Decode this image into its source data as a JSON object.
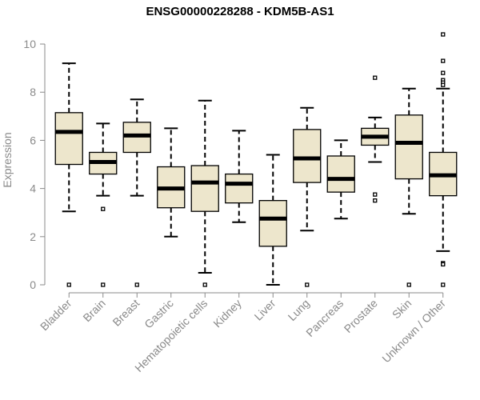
{
  "chart_data": {
    "type": "boxplot",
    "title": "ENSG00000228288 - KDM5B-AS1",
    "xlabel": "",
    "ylabel": "Expression",
    "ylim": [
      0,
      10.5
    ],
    "yticks": [
      0,
      2,
      4,
      6,
      8,
      10
    ],
    "grid": false,
    "box_color": "#ede6cc",
    "categories": [
      "Bladder",
      "Brain",
      "Breast",
      "Gastric",
      "Hematopoietic cells",
      "Kidney",
      "Liver",
      "Lung",
      "Pancreas",
      "Prostate",
      "Skin",
      "Unknown / Other"
    ],
    "boxes": [
      {
        "category": "Bladder",
        "whisker_low": 3.05,
        "q1": 5.0,
        "median": 6.35,
        "q3": 7.15,
        "whisker_high": 9.2,
        "outliers": [
          0.0
        ]
      },
      {
        "category": "Brain",
        "whisker_low": 3.7,
        "q1": 4.6,
        "median": 5.1,
        "q3": 5.5,
        "whisker_high": 6.7,
        "outliers": [
          3.15,
          0.0
        ]
      },
      {
        "category": "Breast",
        "whisker_low": 3.7,
        "q1": 5.5,
        "median": 6.2,
        "q3": 6.75,
        "whisker_high": 7.7,
        "outliers": [
          0.0
        ]
      },
      {
        "category": "Gastric",
        "whisker_low": 2.0,
        "q1": 3.2,
        "median": 4.0,
        "q3": 4.9,
        "whisker_high": 6.5,
        "outliers": []
      },
      {
        "category": "Hematopoietic cells",
        "whisker_low": 0.5,
        "q1": 3.05,
        "median": 4.25,
        "q3": 4.95,
        "whisker_high": 7.65,
        "outliers": [
          0.0
        ]
      },
      {
        "category": "Kidney",
        "whisker_low": 2.6,
        "q1": 3.4,
        "median": 4.2,
        "q3": 4.6,
        "whisker_high": 6.4,
        "outliers": []
      },
      {
        "category": "Liver",
        "whisker_low": 0.0,
        "q1": 1.6,
        "median": 2.75,
        "q3": 3.5,
        "whisker_high": 5.4,
        "outliers": []
      },
      {
        "category": "Lung",
        "whisker_low": 2.25,
        "q1": 4.25,
        "median": 5.25,
        "q3": 6.45,
        "whisker_high": 7.35,
        "outliers": [
          0.0
        ]
      },
      {
        "category": "Pancreas",
        "whisker_low": 2.75,
        "q1": 3.85,
        "median": 4.4,
        "q3": 5.35,
        "whisker_high": 6.0,
        "outliers": []
      },
      {
        "category": "Prostate",
        "whisker_low": 5.1,
        "q1": 5.8,
        "median": 6.15,
        "q3": 6.5,
        "whisker_high": 6.95,
        "outliers": [
          8.6,
          3.75,
          3.5
        ]
      },
      {
        "category": "Skin",
        "whisker_low": 2.95,
        "q1": 4.4,
        "median": 5.9,
        "q3": 7.05,
        "whisker_high": 8.15,
        "outliers": [
          0.0
        ]
      },
      {
        "category": "Unknown / Other",
        "whisker_low": 1.4,
        "q1": 3.7,
        "median": 4.55,
        "q3": 5.5,
        "whisker_high": 8.15,
        "outliers": [
          10.4,
          9.3,
          8.8,
          8.5,
          8.4,
          8.3,
          0.9,
          0.85,
          0.0
        ]
      }
    ]
  }
}
